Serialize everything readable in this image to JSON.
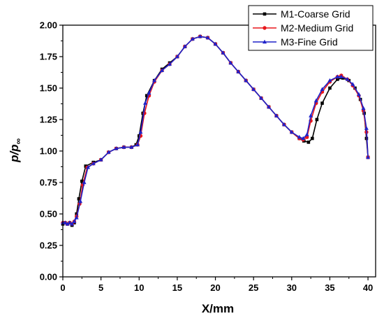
{
  "chart_data": {
    "type": "line",
    "xlabel": "X/mm",
    "ylabel_main": "p/p",
    "ylabel_sub": "∞",
    "xlim": [
      0,
      41
    ],
    "ylim": [
      0,
      2.0
    ],
    "xticks": [
      0,
      5,
      10,
      15,
      20,
      25,
      30,
      35,
      40
    ],
    "yticks": [
      0.0,
      0.25,
      0.5,
      0.75,
      1.0,
      1.25,
      1.5,
      1.75,
      2.0
    ],
    "xtick_labels": [
      "0",
      "5",
      "10",
      "15",
      "20",
      "25",
      "30",
      "35",
      "40"
    ],
    "ytick_labels": [
      "0.00",
      "0.25",
      "0.50",
      "0.75",
      "1.00",
      "1.25",
      "1.50",
      "1.75",
      "2.00"
    ],
    "legend_position": "top-right",
    "series": [
      {
        "name": "M1-Coarse Grid",
        "color": "#000000",
        "marker": "square",
        "points": [
          [
            0,
            0.42
          ],
          [
            0.3,
            0.43
          ],
          [
            0.6,
            0.42
          ],
          [
            0.9,
            0.43
          ],
          [
            1.2,
            0.41
          ],
          [
            1.5,
            0.43
          ],
          [
            1.8,
            0.5
          ],
          [
            2.1,
            0.62
          ],
          [
            2.5,
            0.76
          ],
          [
            3.0,
            0.88
          ],
          [
            4.0,
            0.91
          ],
          [
            5.0,
            0.93
          ],
          [
            6.0,
            0.99
          ],
          [
            7.0,
            1.02
          ],
          [
            8.0,
            1.03
          ],
          [
            9.0,
            1.03
          ],
          [
            9.6,
            1.05
          ],
          [
            10.0,
            1.12
          ],
          [
            10.5,
            1.3
          ],
          [
            11.0,
            1.44
          ],
          [
            12.0,
            1.56
          ],
          [
            13.0,
            1.65
          ],
          [
            14.0,
            1.7
          ],
          [
            15.0,
            1.75
          ],
          [
            16.0,
            1.83
          ],
          [
            17.0,
            1.89
          ],
          [
            18.0,
            1.91
          ],
          [
            19.0,
            1.9
          ],
          [
            20.0,
            1.85
          ],
          [
            21.0,
            1.78
          ],
          [
            22.0,
            1.7
          ],
          [
            23.0,
            1.63
          ],
          [
            24.0,
            1.56
          ],
          [
            25.0,
            1.49
          ],
          [
            26.0,
            1.42
          ],
          [
            27.0,
            1.35
          ],
          [
            28.0,
            1.28
          ],
          [
            29.0,
            1.21
          ],
          [
            30.0,
            1.15
          ],
          [
            31.0,
            1.1
          ],
          [
            31.6,
            1.08
          ],
          [
            32.2,
            1.07
          ],
          [
            32.7,
            1.1
          ],
          [
            33.3,
            1.25
          ],
          [
            34.0,
            1.38
          ],
          [
            35.0,
            1.5
          ],
          [
            36.0,
            1.57
          ],
          [
            36.7,
            1.58
          ],
          [
            37.5,
            1.56
          ],
          [
            38.3,
            1.5
          ],
          [
            39.0,
            1.41
          ],
          [
            39.5,
            1.3
          ],
          [
            39.8,
            1.1
          ],
          [
            40.0,
            0.95
          ]
        ]
      },
      {
        "name": "M2-Medium Grid",
        "color": "#e8171b",
        "marker": "circle",
        "points": [
          [
            0,
            0.43
          ],
          [
            0.3,
            0.43
          ],
          [
            0.6,
            0.42
          ],
          [
            0.9,
            0.43
          ],
          [
            1.2,
            0.42
          ],
          [
            1.5,
            0.44
          ],
          [
            1.8,
            0.48
          ],
          [
            2.2,
            0.58
          ],
          [
            2.6,
            0.73
          ],
          [
            3.2,
            0.87
          ],
          [
            4.0,
            0.9
          ],
          [
            5.0,
            0.93
          ],
          [
            6.0,
            0.99
          ],
          [
            7.0,
            1.02
          ],
          [
            8.0,
            1.03
          ],
          [
            9.0,
            1.03
          ],
          [
            9.8,
            1.05
          ],
          [
            10.2,
            1.12
          ],
          [
            10.7,
            1.3
          ],
          [
            11.3,
            1.44
          ],
          [
            12.0,
            1.55
          ],
          [
            13.0,
            1.64
          ],
          [
            14.0,
            1.69
          ],
          [
            15.0,
            1.75
          ],
          [
            16.0,
            1.83
          ],
          [
            17.0,
            1.89
          ],
          [
            18.0,
            1.91
          ],
          [
            19.0,
            1.9
          ],
          [
            20.0,
            1.85
          ],
          [
            21.0,
            1.78
          ],
          [
            22.0,
            1.7
          ],
          [
            23.0,
            1.63
          ],
          [
            24.0,
            1.56
          ],
          [
            25.0,
            1.49
          ],
          [
            26.0,
            1.42
          ],
          [
            27.0,
            1.35
          ],
          [
            28.0,
            1.28
          ],
          [
            29.0,
            1.21
          ],
          [
            30.0,
            1.15
          ],
          [
            31.0,
            1.1
          ],
          [
            31.5,
            1.09
          ],
          [
            32.0,
            1.11
          ],
          [
            32.5,
            1.24
          ],
          [
            33.2,
            1.38
          ],
          [
            34.0,
            1.47
          ],
          [
            35.0,
            1.55
          ],
          [
            36.0,
            1.59
          ],
          [
            36.5,
            1.6
          ],
          [
            37.3,
            1.57
          ],
          [
            38.0,
            1.52
          ],
          [
            38.8,
            1.44
          ],
          [
            39.4,
            1.32
          ],
          [
            39.8,
            1.15
          ],
          [
            40.0,
            0.95
          ]
        ]
      },
      {
        "name": "M3-Fine Grid",
        "color": "#1f22c9",
        "marker": "triangle",
        "points": [
          [
            0,
            0.43
          ],
          [
            0.3,
            0.43
          ],
          [
            0.6,
            0.42
          ],
          [
            0.9,
            0.43
          ],
          [
            1.2,
            0.42
          ],
          [
            1.5,
            0.44
          ],
          [
            1.8,
            0.47
          ],
          [
            2.3,
            0.6
          ],
          [
            2.8,
            0.75
          ],
          [
            3.3,
            0.87
          ],
          [
            4.0,
            0.9
          ],
          [
            5.0,
            0.93
          ],
          [
            6.0,
            0.99
          ],
          [
            7.0,
            1.02
          ],
          [
            8.0,
            1.03
          ],
          [
            9.0,
            1.03
          ],
          [
            9.8,
            1.05
          ],
          [
            10.2,
            1.15
          ],
          [
            10.8,
            1.38
          ],
          [
            11.3,
            1.46
          ],
          [
            12.0,
            1.56
          ],
          [
            13.0,
            1.64
          ],
          [
            14.0,
            1.69
          ],
          [
            15.0,
            1.75
          ],
          [
            16.0,
            1.83
          ],
          [
            17.0,
            1.89
          ],
          [
            18.0,
            1.91
          ],
          [
            19.0,
            1.9
          ],
          [
            20.0,
            1.85
          ],
          [
            21.0,
            1.78
          ],
          [
            22.0,
            1.7
          ],
          [
            23.0,
            1.63
          ],
          [
            24.0,
            1.56
          ],
          [
            25.0,
            1.49
          ],
          [
            26.0,
            1.42
          ],
          [
            27.0,
            1.35
          ],
          [
            28.0,
            1.28
          ],
          [
            29.0,
            1.21
          ],
          [
            30.0,
            1.15
          ],
          [
            31.0,
            1.11
          ],
          [
            31.5,
            1.1
          ],
          [
            32.0,
            1.13
          ],
          [
            32.5,
            1.28
          ],
          [
            33.2,
            1.4
          ],
          [
            34.0,
            1.49
          ],
          [
            35.0,
            1.56
          ],
          [
            36.0,
            1.59
          ],
          [
            36.5,
            1.59
          ],
          [
            37.3,
            1.57
          ],
          [
            38.0,
            1.53
          ],
          [
            38.8,
            1.45
          ],
          [
            39.4,
            1.34
          ],
          [
            39.8,
            1.18
          ],
          [
            40.0,
            0.95
          ]
        ]
      }
    ]
  }
}
